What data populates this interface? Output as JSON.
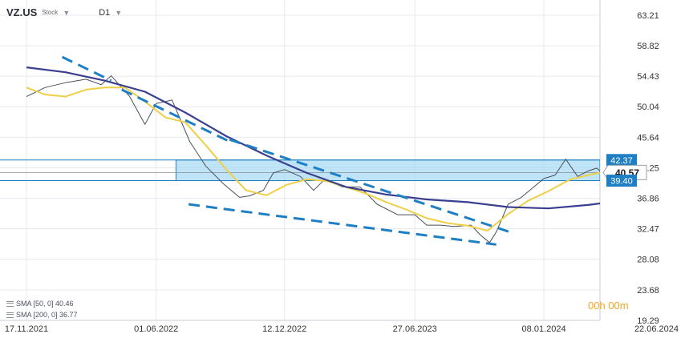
{
  "header": {
    "symbol": "VZ.US",
    "instrument_type": "Stock",
    "timeframe": "D1"
  },
  "indicators": [
    {
      "label": "SMA [50, 0] 40.46"
    },
    {
      "label": "SMA [200, 0] 36.77"
    }
  ],
  "timer": {
    "hours": "00",
    "h_unit": "h",
    "minutes": "00",
    "m_unit": "m"
  },
  "colors": {
    "price": "#4a4f5a",
    "sma50": "#efcf47",
    "sma200": "#3a3f8f",
    "trendline": "#1f7fc4",
    "zone_fill": "#a9dbf4",
    "zone_border": "#1f7fc4",
    "label_bg": "#1f7fc4",
    "grid": "#e6e9ef",
    "axis_text": "#333333"
  },
  "chart_data": {
    "type": "line",
    "y_axis": {
      "ticks": [
        "63.21",
        "58.82",
        "54.43",
        "50.04",
        "45.64",
        "41.25",
        "36.86",
        "32.47",
        "28.08",
        "23.68",
        "19.29"
      ],
      "range": [
        19.29,
        65.4
      ],
      "position": "right"
    },
    "x_axis": {
      "ticks": [
        "17.11.2021",
        "01.06.2022",
        "12.12.2022",
        "27.06.2023",
        "08.01.2024",
        "22.06.2024"
      ],
      "range": [
        "2021-11-17",
        "2024-06-22"
      ]
    },
    "grid": true,
    "series": [
      {
        "name": "VZ.US",
        "style": "price",
        "x": [
          "2021-11-17",
          "2021-12-15",
          "2022-01-15",
          "2022-02-15",
          "2022-03-10",
          "2022-03-25",
          "2022-04-22",
          "2022-05-15",
          "2022-06-01",
          "2022-06-25",
          "2022-07-22",
          "2022-08-15",
          "2022-09-10",
          "2022-10-05",
          "2022-10-20",
          "2022-11-10",
          "2022-11-25",
          "2022-12-12",
          "2023-01-05",
          "2023-01-25",
          "2023-02-10",
          "2023-03-10",
          "2023-04-05",
          "2023-05-01",
          "2023-06-01",
          "2023-06-27",
          "2023-07-15",
          "2023-08-05",
          "2023-08-25",
          "2023-09-20",
          "2023-10-05",
          "2023-10-18",
          "2023-10-28",
          "2023-11-15",
          "2023-12-05",
          "2023-12-20",
          "2024-01-08",
          "2024-01-25",
          "2024-02-10",
          "2024-02-28",
          "2024-03-15",
          "2024-03-28",
          "2024-04-10",
          "2024-04-25",
          "2024-05-05",
          "2024-05-15",
          "2024-05-25"
        ],
        "values": [
          51.5,
          52.8,
          53.5,
          54.0,
          53.2,
          54.5,
          51.5,
          47.5,
          50.5,
          51.0,
          45.0,
          41.5,
          39.0,
          37.0,
          37.2,
          38.0,
          40.5,
          41.0,
          40.0,
          38.0,
          39.5,
          38.5,
          38.5,
          36.0,
          34.5,
          34.5,
          33.0,
          33.0,
          32.8,
          33.0,
          31.5,
          30.5,
          32.0,
          36.0,
          37.0,
          38.2,
          39.7,
          40.2,
          42.5,
          40.0,
          40.8,
          41.2,
          40.0,
          41.5,
          43.0,
          40.2,
          40.57
        ]
      },
      {
        "name": "SMA [50, 0]",
        "style": "sma50",
        "x": [
          "2021-11-17",
          "2021-12-15",
          "2022-01-15",
          "2022-02-15",
          "2022-03-15",
          "2022-04-15",
          "2022-05-15",
          "2022-06-15",
          "2022-07-15",
          "2022-08-15",
          "2022-09-15",
          "2022-10-15",
          "2022-11-15",
          "2022-12-15",
          "2023-01-15",
          "2023-02-15",
          "2023-03-15",
          "2023-04-15",
          "2023-05-15",
          "2023-06-15",
          "2023-07-15",
          "2023-08-15",
          "2023-09-15",
          "2023-10-15",
          "2023-11-15",
          "2023-12-15",
          "2024-01-15",
          "2024-02-15",
          "2024-03-15",
          "2024-04-15",
          "2024-05-15"
        ],
        "values": [
          52.8,
          51.8,
          51.5,
          52.5,
          52.8,
          52.8,
          50.8,
          48.5,
          47.8,
          44.5,
          41.0,
          38.0,
          37.3,
          38.8,
          39.6,
          39.3,
          38.5,
          37.5,
          36.3,
          35.2,
          34.0,
          33.3,
          32.9,
          32.2,
          34.6,
          36.5,
          37.9,
          39.5,
          40.2,
          40.8,
          40.46
        ]
      },
      {
        "name": "SMA [200, 0]",
        "style": "sma200",
        "x": [
          "2021-11-17",
          "2022-01-15",
          "2022-03-15",
          "2022-05-15",
          "2022-07-15",
          "2022-09-15",
          "2022-11-15",
          "2023-01-15",
          "2023-03-15",
          "2023-05-15",
          "2023-07-15",
          "2023-09-15",
          "2023-11-15",
          "2024-01-15",
          "2024-03-15",
          "2024-05-25"
        ],
        "values": [
          55.7,
          55.0,
          53.8,
          52.2,
          49.2,
          45.8,
          43.0,
          40.5,
          38.5,
          37.4,
          36.7,
          36.3,
          35.6,
          35.4,
          35.9,
          36.77
        ]
      }
    ],
    "trendlines": [
      {
        "from": [
          "2022-01-10",
          57.2
        ],
        "to": [
          "2022-03-25",
          53.8
        ]
      },
      {
        "from": [
          "2022-04-10",
          52.5
        ],
        "to": [
          "2022-09-25",
          44.8
        ]
      },
      {
        "from": [
          "2022-09-20",
          45.3
        ],
        "to": [
          "2023-11-18",
          32.0
        ]
      },
      {
        "from": [
          "2022-07-20",
          36.0
        ],
        "to": [
          "2023-10-28",
          30.2
        ]
      }
    ],
    "zone": {
      "upper": 42.37,
      "lower": 39.4,
      "from": "2022-07-01",
      "to": "2024-06-22"
    },
    "horizontal_lines": [
      42.37,
      39.4
    ],
    "price_labels": [
      {
        "value": 42.37,
        "text": "42.37"
      },
      {
        "value": 40.57,
        "text": "40.57",
        "current": true
      },
      {
        "value": 39.4,
        "text": "39.40"
      }
    ]
  }
}
